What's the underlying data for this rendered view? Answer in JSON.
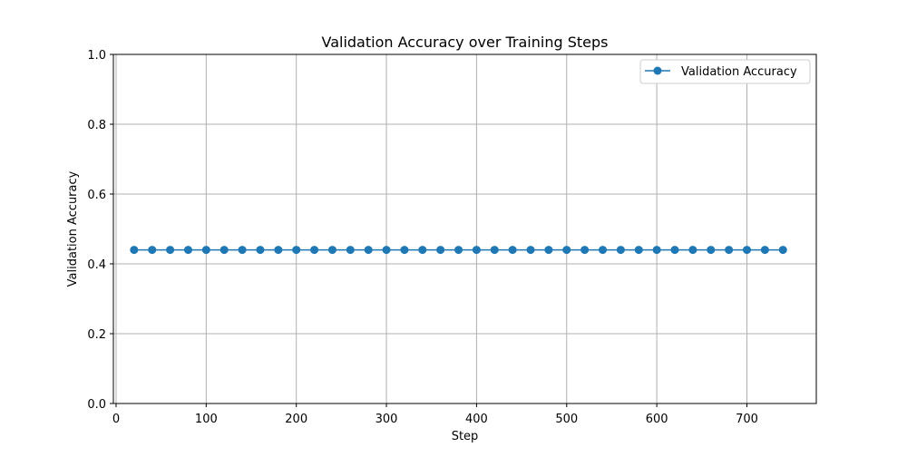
{
  "chart_data": {
    "type": "line",
    "title": "Validation Accuracy over Training Steps",
    "xlabel": "Step",
    "ylabel": "Validation Accuracy",
    "xlim": [
      -3,
      777
    ],
    "ylim": [
      0.0,
      1.0
    ],
    "xticks": [
      0,
      100,
      200,
      300,
      400,
      500,
      600,
      700
    ],
    "yticks": [
      0.0,
      0.2,
      0.4,
      0.6,
      0.8,
      1.0
    ],
    "xtick_labels": [
      "0",
      "100",
      "200",
      "300",
      "400",
      "500",
      "600",
      "700"
    ],
    "ytick_labels": [
      "0.0",
      "0.2",
      "0.4",
      "0.6",
      "0.8",
      "1.0"
    ],
    "grid": true,
    "legend_position": "top-right",
    "series": [
      {
        "name": "Validation Accuracy",
        "color": "#1f77b4",
        "marker": "circle",
        "x": [
          20,
          40,
          60,
          80,
          100,
          120,
          140,
          160,
          180,
          200,
          220,
          240,
          260,
          280,
          300,
          320,
          340,
          360,
          380,
          400,
          420,
          440,
          460,
          480,
          500,
          520,
          540,
          560,
          580,
          600,
          620,
          640,
          660,
          680,
          700,
          720,
          740
        ],
        "y": [
          0.44,
          0.44,
          0.44,
          0.44,
          0.44,
          0.44,
          0.44,
          0.44,
          0.44,
          0.44,
          0.44,
          0.44,
          0.44,
          0.44,
          0.44,
          0.44,
          0.44,
          0.44,
          0.44,
          0.44,
          0.44,
          0.44,
          0.44,
          0.44,
          0.44,
          0.44,
          0.44,
          0.44,
          0.44,
          0.44,
          0.44,
          0.44,
          0.44,
          0.44,
          0.44,
          0.44,
          0.44
        ]
      }
    ]
  }
}
